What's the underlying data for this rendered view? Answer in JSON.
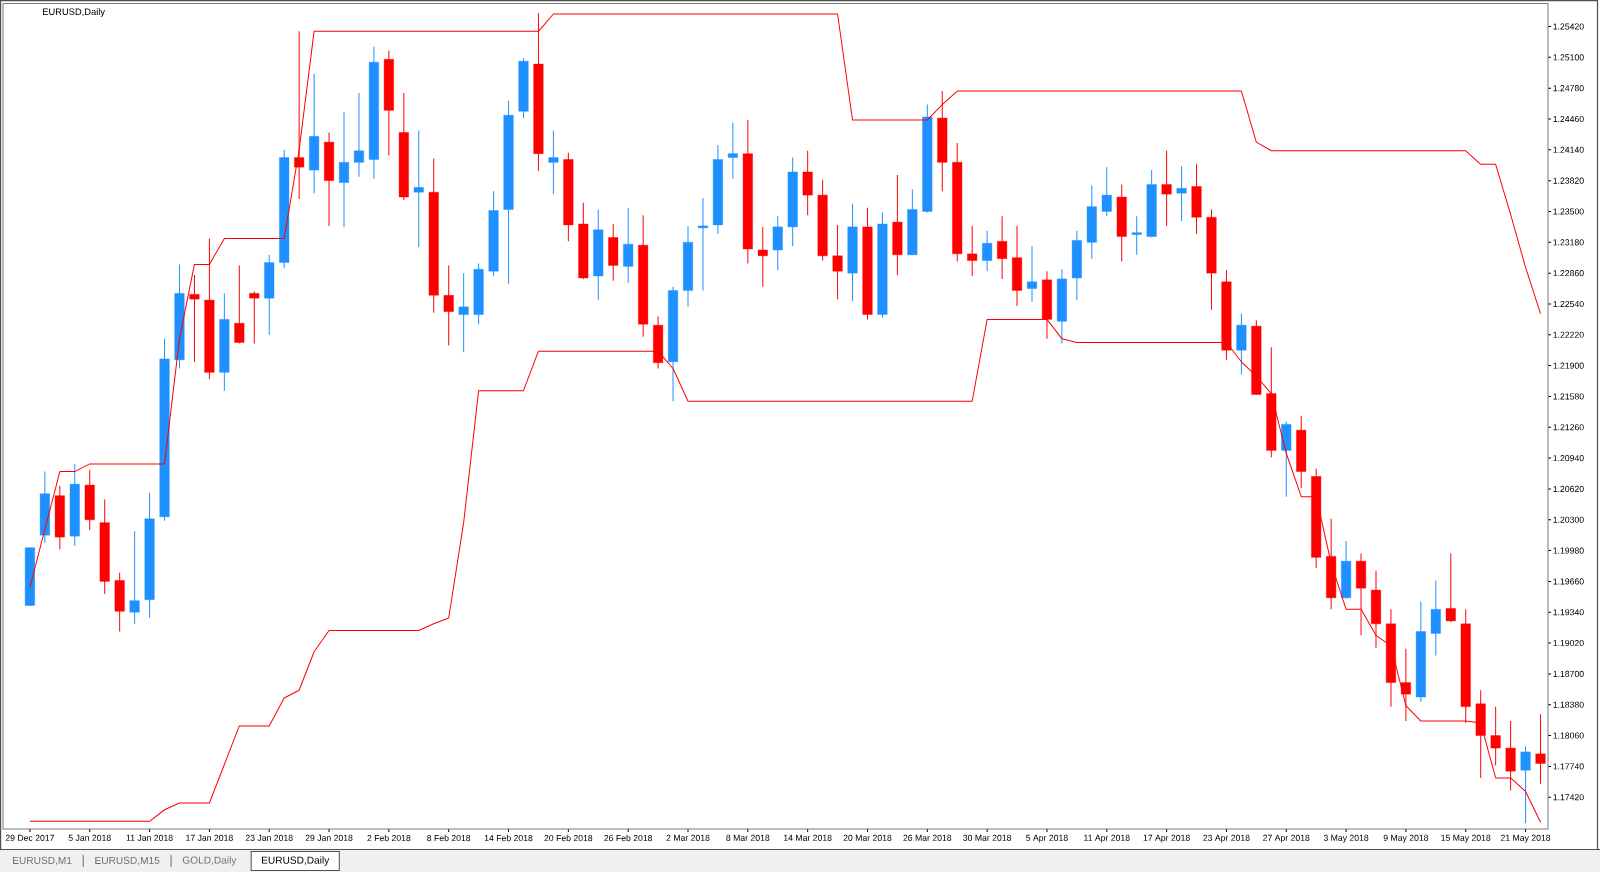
{
  "chart_data": {
    "type": "candlestick",
    "title": "EURUSD,Daily",
    "categories": [
      "29 Dec 2017",
      null,
      null,
      null,
      "5 Jan 2018",
      null,
      null,
      null,
      "11 Jan 2018",
      null,
      null,
      null,
      "17 Jan 2018",
      null,
      null,
      null,
      "23 Jan 2018",
      null,
      null,
      null,
      "29 Jan 2018",
      null,
      null,
      null,
      "2 Feb 2018",
      null,
      null,
      null,
      "8 Feb 2018",
      null,
      null,
      null,
      "14 Feb 2018",
      null,
      null,
      null,
      "20 Feb 2018",
      null,
      null,
      null,
      "26 Feb 2018",
      null,
      null,
      null,
      "2 Mar 2018",
      null,
      null,
      null,
      "8 Mar 2018",
      null,
      null,
      null,
      "14 Mar 2018",
      null,
      null,
      null,
      "20 Mar 2018",
      null,
      null,
      null,
      "26 Mar 2018",
      null,
      null,
      null,
      "30 Mar 2018",
      null,
      null,
      null,
      "5 Apr 2018",
      null,
      null,
      null,
      "11 Apr 2018",
      null,
      null,
      null,
      "17 Apr 2018",
      null,
      null,
      null,
      "23 Apr 2018",
      null,
      null,
      null,
      "27 Apr 2018",
      null,
      null,
      null,
      "3 May 2018",
      null,
      null,
      null,
      "9 May 2018",
      null,
      null,
      null,
      "15 May 2018",
      null,
      null,
      null,
      "21 May 2018",
      null
    ],
    "ohlc": [
      [
        1.1941,
        1.2001,
        1.1941,
        1.2001
      ],
      [
        1.2014,
        1.208,
        1.2006,
        1.2057
      ],
      [
        1.2055,
        1.2065,
        1.1999,
        1.2012
      ],
      [
        1.2013,
        1.2088,
        1.2003,
        1.2067
      ],
      [
        1.2066,
        1.2082,
        1.2019,
        1.203
      ],
      [
        1.2027,
        1.2051,
        1.1953,
        1.1966
      ],
      [
        1.1967,
        1.1975,
        1.1914,
        1.1935
      ],
      [
        1.1934,
        1.2018,
        1.1922,
        1.1946
      ],
      [
        1.1947,
        1.2058,
        1.1928,
        1.2031
      ],
      [
        1.2033,
        1.2218,
        1.2029,
        1.2197
      ],
      [
        1.2196,
        1.2295,
        1.2187,
        1.2265
      ],
      [
        1.2264,
        1.2284,
        1.2194,
        1.2259
      ],
      [
        1.2258,
        1.2322,
        1.2176,
        1.2183
      ],
      [
        1.2183,
        1.2265,
        1.2164,
        1.2238
      ],
      [
        1.2234,
        1.2294,
        1.2213,
        1.2214
      ],
      [
        1.2265,
        1.2267,
        1.2213,
        1.226
      ],
      [
        1.226,
        1.2305,
        1.2222,
        1.2297
      ],
      [
        1.2297,
        1.2414,
        1.2291,
        1.2406
      ],
      [
        1.2406,
        1.2537,
        1.2363,
        1.2396
      ],
      [
        1.2393,
        1.2493,
        1.2369,
        1.2428
      ],
      [
        1.2422,
        1.2432,
        1.2335,
        1.2382
      ],
      [
        1.238,
        1.2453,
        1.2334,
        1.2401
      ],
      [
        1.2401,
        1.2473,
        1.2386,
        1.2413
      ],
      [
        1.2404,
        1.2521,
        1.2384,
        1.2505
      ],
      [
        1.2508,
        1.2517,
        1.2408,
        1.2455
      ],
      [
        1.2432,
        1.2473,
        1.2362,
        1.2365
      ],
      [
        1.237,
        1.2434,
        1.2313,
        1.2375
      ],
      [
        1.237,
        1.2405,
        1.2245,
        1.2263
      ],
      [
        1.2263,
        1.2294,
        1.2211,
        1.2246
      ],
      [
        1.2243,
        1.2286,
        1.2204,
        1.2251
      ],
      [
        1.2243,
        1.2296,
        1.2233,
        1.229
      ],
      [
        1.2288,
        1.2371,
        1.2283,
        1.2351
      ],
      [
        1.2352,
        1.2465,
        1.2275,
        1.245
      ],
      [
        1.2454,
        1.2509,
        1.2447,
        1.2506
      ],
      [
        1.2503,
        1.2556,
        1.2392,
        1.241
      ],
      [
        1.2401,
        1.2434,
        1.2368,
        1.2406
      ],
      [
        1.2404,
        1.2411,
        1.2319,
        1.2336
      ],
      [
        1.2337,
        1.2359,
        1.228,
        1.2281
      ],
      [
        1.2283,
        1.2352,
        1.2258,
        1.2331
      ],
      [
        1.2323,
        1.2337,
        1.2278,
        1.2294
      ],
      [
        1.2293,
        1.2354,
        1.2276,
        1.2316
      ],
      [
        1.2315,
        1.2346,
        1.222,
        1.2233
      ],
      [
        1.2232,
        1.2241,
        1.2187,
        1.2193
      ],
      [
        1.2194,
        1.2272,
        1.2153,
        1.2268
      ],
      [
        1.2268,
        1.2335,
        1.2251,
        1.2318
      ],
      [
        1.2333,
        1.2364,
        1.2268,
        1.2335
      ],
      [
        1.2336,
        1.2419,
        1.2327,
        1.2404
      ],
      [
        1.2406,
        1.2442,
        1.2384,
        1.241
      ],
      [
        1.241,
        1.2445,
        1.2296,
        1.2311
      ],
      [
        1.231,
        1.2334,
        1.2272,
        1.2304
      ],
      [
        1.231,
        1.2345,
        1.2289,
        1.2334
      ],
      [
        1.2334,
        1.2406,
        1.2314,
        1.2391
      ],
      [
        1.2391,
        1.2413,
        1.2346,
        1.2367
      ],
      [
        1.2367,
        1.2383,
        1.2299,
        1.2304
      ],
      [
        1.2304,
        1.2336,
        1.2259,
        1.2288
      ],
      [
        1.2286,
        1.2358,
        1.2257,
        1.2334
      ],
      [
        1.2334,
        1.2354,
        1.2238,
        1.2243
      ],
      [
        1.2243,
        1.2349,
        1.224,
        1.2337
      ],
      [
        1.2339,
        1.2388,
        1.2284,
        1.2305
      ],
      [
        1.2305,
        1.2373,
        1.2305,
        1.2352
      ],
      [
        1.235,
        1.2461,
        1.2349,
        1.2448
      ],
      [
        1.2447,
        1.2475,
        1.2371,
        1.2401
      ],
      [
        1.2401,
        1.2421,
        1.2298,
        1.2306
      ],
      [
        1.2306,
        1.2335,
        1.2283,
        1.2299
      ],
      [
        1.2299,
        1.233,
        1.2288,
        1.2317
      ],
      [
        1.2319,
        1.2345,
        1.228,
        1.2301
      ],
      [
        1.2302,
        1.2335,
        1.2252,
        1.2268
      ],
      [
        1.227,
        1.2314,
        1.2256,
        1.2277
      ],
      [
        1.2279,
        1.2288,
        1.2218,
        1.2238
      ],
      [
        1.2236,
        1.229,
        1.2213,
        1.228
      ],
      [
        1.2281,
        1.233,
        1.2258,
        1.232
      ],
      [
        1.2318,
        1.2377,
        1.2301,
        1.2355
      ],
      [
        1.235,
        1.2396,
        1.2345,
        1.2367
      ],
      [
        1.2365,
        1.2378,
        1.2298,
        1.2324
      ],
      [
        1.2326,
        1.2345,
        1.2305,
        1.2328
      ],
      [
        1.2324,
        1.2393,
        1.2323,
        1.2378
      ],
      [
        1.2378,
        1.2413,
        1.2335,
        1.2368
      ],
      [
        1.2369,
        1.2397,
        1.234,
        1.2374
      ],
      [
        1.2376,
        1.2399,
        1.2327,
        1.2344
      ],
      [
        1.2344,
        1.2352,
        1.2248,
        1.2286
      ],
      [
        1.2277,
        1.2289,
        1.2196,
        1.2206
      ],
      [
        1.2206,
        1.2244,
        1.2181,
        1.2232
      ],
      [
        1.2231,
        1.2237,
        1.216,
        1.216
      ],
      [
        1.2161,
        1.2209,
        1.2095,
        1.2102
      ],
      [
        1.2102,
        1.2132,
        1.2054,
        1.2129
      ],
      [
        1.2123,
        1.2138,
        1.2063,
        1.208
      ],
      [
        1.2075,
        1.2083,
        1.198,
        1.1991
      ],
      [
        1.1992,
        1.2031,
        1.1937,
        1.1949
      ],
      [
        1.1949,
        1.2008,
        1.1948,
        1.1987
      ],
      [
        1.1987,
        1.1995,
        1.191,
        1.1959
      ],
      [
        1.1957,
        1.1977,
        1.1897,
        1.1922
      ],
      [
        1.1922,
        1.1937,
        1.1836,
        1.1861
      ],
      [
        1.1861,
        1.1896,
        1.1821,
        1.1849
      ],
      [
        1.1846,
        1.1945,
        1.1841,
        1.1914
      ],
      [
        1.1912,
        1.1967,
        1.1889,
        1.1937
      ],
      [
        1.1938,
        1.1995,
        1.1924,
        1.1925
      ],
      [
        1.1922,
        1.1937,
        1.1819,
        1.1836
      ],
      [
        1.1839,
        1.1853,
        1.1762,
        1.1806
      ],
      [
        1.1806,
        1.1836,
        1.1775,
        1.1793
      ],
      [
        1.1793,
        1.1821,
        1.1749,
        1.1769
      ],
      [
        1.177,
        1.1795,
        1.1715,
        1.1789
      ],
      [
        1.1787,
        1.1828,
        1.1756,
        1.1777
      ]
    ],
    "colors": [
      "#1e90ff",
      "#1e90ff",
      "#ff0000",
      "#1e90ff",
      "#ff0000",
      "#ff0000",
      "#ff0000",
      "#1e90ff",
      "#1e90ff",
      "#1e90ff",
      "#1e90ff",
      "#ff0000",
      "#ff0000",
      "#1e90ff",
      "#ff0000",
      "#ff0000",
      "#1e90ff",
      "#1e90ff",
      "#ff0000",
      "#1e90ff",
      "#ff0000",
      "#1e90ff",
      "#1e90ff",
      "#1e90ff",
      "#ff0000",
      "#ff0000",
      "#1e90ff",
      "#ff0000",
      "#ff0000",
      "#1e90ff",
      "#1e90ff",
      "#1e90ff",
      "#1e90ff",
      "#1e90ff",
      "#ff0000",
      "#1e90ff",
      "#ff0000",
      "#ff0000",
      "#1e90ff",
      "#ff0000",
      "#1e90ff",
      "#ff0000",
      "#ff0000",
      "#1e90ff",
      "#1e90ff",
      "#1e90ff",
      "#1e90ff",
      "#1e90ff",
      "#ff0000",
      "#ff0000",
      "#1e90ff",
      "#1e90ff",
      "#ff0000",
      "#ff0000",
      "#ff0000",
      "#1e90ff",
      "#ff0000",
      "#1e90ff",
      "#ff0000",
      "#1e90ff",
      "#1e90ff",
      "#ff0000",
      "#ff0000",
      "#ff0000",
      "#1e90ff",
      "#ff0000",
      "#ff0000",
      "#1e90ff",
      "#ff0000",
      "#1e90ff",
      "#1e90ff",
      "#1e90ff",
      "#1e90ff",
      "#ff0000",
      "#1e90ff",
      "#1e90ff",
      "#ff0000",
      "#1e90ff",
      "#ff0000",
      "#ff0000",
      "#ff0000",
      "#1e90ff",
      "#ff0000",
      "#ff0000",
      "#1e90ff",
      "#ff0000",
      "#ff0000",
      "#ff0000",
      "#1e90ff",
      "#ff0000",
      "#ff0000",
      "#ff0000",
      "#ff0000",
      "#1e90ff",
      "#1e90ff",
      "#ff0000",
      "#ff0000",
      "#ff0000",
      "#ff0000",
      "#ff0000",
      "#1e90ff",
      "#ff0000"
    ],
    "series": [
      {
        "type": "line",
        "color": "#ff0000",
        "values": [
          1.196,
          1.202,
          1.208,
          1.208,
          1.2088,
          1.2088,
          1.2088,
          1.2088,
          1.2088,
          1.2088,
          1.2218,
          1.2295,
          1.2295,
          1.2322,
          1.2322,
          1.2322,
          1.2322,
          1.2322,
          1.2414,
          1.2537,
          1.2537,
          1.2537,
          1.2537,
          1.2537,
          1.2537,
          1.2537,
          1.2537,
          1.2537,
          1.2537,
          1.2537,
          1.2537,
          1.2537,
          1.2537,
          1.2537,
          1.2537,
          1.2555,
          1.2555,
          1.2555,
          1.2555,
          1.2555,
          1.2555,
          1.2555,
          1.2555,
          1.2555,
          1.2555,
          1.2555,
          1.2555,
          1.2555,
          1.2555,
          1.2555,
          1.2555,
          1.2555,
          1.2555,
          1.2555,
          1.2555,
          1.2445,
          1.2445,
          1.2445,
          1.2445,
          1.2445,
          1.2445,
          1.2461,
          1.2475,
          1.2475,
          1.2475,
          1.2475,
          1.2475,
          1.2475,
          1.2475,
          1.2475,
          1.2475,
          1.2475,
          1.2475,
          1.2475,
          1.2475,
          1.2475,
          1.2475,
          1.2475,
          1.2475,
          1.2475,
          1.2475,
          1.2475,
          1.2422,
          1.2413,
          1.2413,
          1.2413,
          1.2413,
          1.2413,
          1.2413,
          1.2413,
          1.2413,
          1.2413,
          1.2413,
          1.2413,
          1.2413,
          1.2413,
          1.2413,
          1.2399,
          1.2399,
          1.2347,
          1.2292,
          1.2244
        ]
      },
      {
        "type": "line",
        "color": "#ff0000",
        "values": [
          1.1717,
          1.1717,
          1.1717,
          1.1717,
          1.1717,
          1.1717,
          1.1717,
          1.1717,
          1.1717,
          1.1729,
          1.1736,
          1.1736,
          1.1736,
          1.1776,
          1.1816,
          1.1816,
          1.1816,
          1.1845,
          1.1853,
          1.1893,
          1.1915,
          1.1915,
          1.1915,
          1.1915,
          1.1915,
          1.1915,
          1.1915,
          1.1922,
          1.1928,
          1.2027,
          1.2164,
          1.2164,
          1.2164,
          1.2164,
          1.2205,
          1.2205,
          1.2205,
          1.2205,
          1.2205,
          1.2205,
          1.2205,
          1.2205,
          1.2205,
          1.2187,
          1.2153,
          1.2153,
          1.2153,
          1.2153,
          1.2153,
          1.2153,
          1.2153,
          1.2153,
          1.2153,
          1.2153,
          1.2153,
          1.2153,
          1.2153,
          1.2153,
          1.2153,
          1.2153,
          1.2153,
          1.2153,
          1.2153,
          1.2153,
          1.2238,
          1.2238,
          1.2238,
          1.2238,
          1.2238,
          1.2218,
          1.2214,
          1.2214,
          1.2214,
          1.2214,
          1.2214,
          1.2214,
          1.2214,
          1.2214,
          1.2214,
          1.2214,
          1.2214,
          1.2194,
          1.2179,
          1.2161,
          1.2099,
          1.2054,
          1.2054,
          1.1985,
          1.1937,
          1.1937,
          1.191,
          1.1899,
          1.1837,
          1.1821,
          1.1821,
          1.1821,
          1.1821,
          1.1819,
          1.1762,
          1.1762,
          1.1748,
          1.1716
        ]
      }
    ],
    "ylim": [
      1.1709,
      1.2566
    ],
    "yticks": [
      {
        "value": 1.1742,
        "label": "1.17420"
      },
      {
        "value": 1.1774,
        "label": "1.17740"
      },
      {
        "value": 1.1806,
        "label": "1.18060"
      },
      {
        "value": 1.1838,
        "label": "1.18380"
      },
      {
        "value": 1.187,
        "label": "1.18700"
      },
      {
        "value": 1.1902,
        "label": "1.19020"
      },
      {
        "value": 1.1934,
        "label": "1.19340"
      },
      {
        "value": 1.1966,
        "label": "1.19660"
      },
      {
        "value": 1.1998,
        "label": "1.19980"
      },
      {
        "value": 1.203,
        "label": "1.20300"
      },
      {
        "value": 1.2062,
        "label": "1.20620"
      },
      {
        "value": 1.2094,
        "label": "1.20940"
      },
      {
        "value": 1.2126,
        "label": "1.21260"
      },
      {
        "value": 1.2158,
        "label": "1.21580"
      },
      {
        "value": 1.219,
        "label": "1.21900"
      },
      {
        "value": 1.2222,
        "label": "1.22220"
      },
      {
        "value": 1.2254,
        "label": "1.22540"
      },
      {
        "value": 1.2286,
        "label": "1.22860"
      },
      {
        "value": 1.2318,
        "label": "1.23180"
      },
      {
        "value": 1.235,
        "label": "1.23500"
      },
      {
        "value": 1.2382,
        "label": "1.23820"
      },
      {
        "value": 1.2414,
        "label": "1.24140"
      },
      {
        "value": 1.2446,
        "label": "1.24460"
      },
      {
        "value": 1.2478,
        "label": "1.24780"
      },
      {
        "value": 1.251,
        "label": "1.25100"
      },
      {
        "value": 1.2542,
        "label": "1.25420"
      }
    ],
    "marker": "none",
    "line_style": "solid",
    "annotations": [
      "EURUSD,M1",
      "EURUSD,M15",
      "GOLD,Daily",
      "EURUSD,Daily"
    ]
  }
}
